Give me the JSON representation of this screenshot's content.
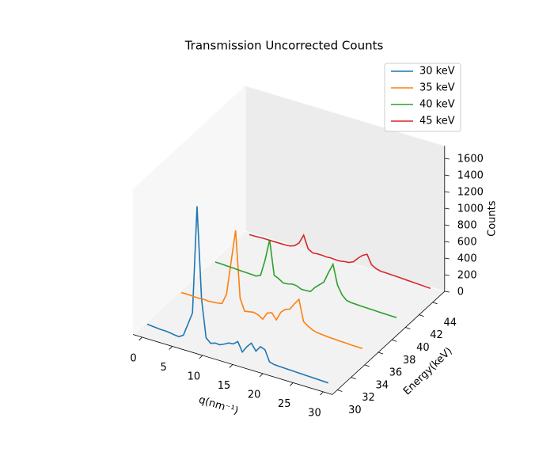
{
  "chart_data": {
    "type": "line3d",
    "title": "Transmission Uncorrected Counts",
    "xlabel": "q(nm⁻¹)",
    "ylabel": "Energy(keV)",
    "zlabel": "Counts",
    "x": [
      0,
      0.75,
      1.5,
      2.25,
      3,
      3.75,
      4.5,
      5.25,
      6,
      6.75,
      7.5,
      8.25,
      9,
      9.75,
      10.5,
      11.25,
      12,
      12.75,
      13.5,
      14.25,
      15,
      15.75,
      16.5,
      17.25,
      18,
      18.75,
      19.5,
      20.25,
      21,
      21.75,
      22.5,
      23.25,
      24,
      24.75,
      25.5,
      26.25,
      27,
      27.75,
      28.5,
      29.25,
      30
    ],
    "series": [
      {
        "name": "30 keV",
        "color": "#1f77b4",
        "energy": 30,
        "values": [
          100,
          95,
          90,
          85,
          85,
          80,
          70,
          65,
          100,
          250,
          400,
          1700,
          600,
          150,
          100,
          120,
          115,
          140,
          170,
          175,
          220,
          110,
          190,
          250,
          170,
          240,
          220,
          90,
          75,
          72,
          70,
          68,
          66,
          64,
          62,
          60,
          58,
          56,
          54,
          52,
          50
        ]
      },
      {
        "name": "35 keV",
        "color": "#ff7f0e",
        "energy": 35,
        "values": [
          105,
          105,
          105,
          100,
          100,
          105,
          100,
          105,
          110,
          120,
          250,
          650,
          1050,
          250,
          110,
          120,
          130,
          115,
          80,
          170,
          190,
          120,
          230,
          280,
          300,
          380,
          450,
          200,
          160,
          130,
          115,
          110,
          105,
          100,
          100,
          95,
          95,
          92,
          90,
          90,
          88
        ]
      },
      {
        "name": "40 keV",
        "color": "#2ca02c",
        "energy": 40,
        "values": [
          95,
          95,
          92,
          90,
          88,
          85,
          82,
          80,
          78,
          75,
          100,
          300,
          560,
          150,
          125,
          90,
          95,
          110,
          105,
          80,
          82,
          85,
          150,
          200,
          250,
          380,
          495,
          260,
          160,
          110,
          100,
          98,
          95,
          93,
          92,
          90,
          88,
          87,
          86,
          85,
          85
        ]
      },
      {
        "name": "45 keV",
        "color": "#d62728",
        "energy": 45,
        "values": [
          50,
          50,
          52,
          55,
          55,
          55,
          55,
          55,
          55,
          60,
          80,
          130,
          240,
          90,
          60,
          65,
          65,
          60,
          65,
          60,
          60,
          70,
          75,
          100,
          160,
          210,
          240,
          130,
          100,
          85,
          85,
          82,
          80,
          78,
          75,
          72,
          70,
          67,
          65,
          62,
          60
        ]
      }
    ],
    "xlim": [
      -1.5,
      31.5
    ],
    "ylim": [
      29.25,
      45.75
    ],
    "zlim": [
      0,
      1750
    ],
    "xticks": [
      0,
      5,
      10,
      15,
      20,
      25,
      30
    ],
    "yticks": [
      30,
      32,
      34,
      36,
      38,
      40,
      42,
      44
    ],
    "zticks": [
      0,
      200,
      400,
      600,
      800,
      1000,
      1200,
      1400,
      1600
    ],
    "grid": false,
    "legend": "upper right"
  }
}
